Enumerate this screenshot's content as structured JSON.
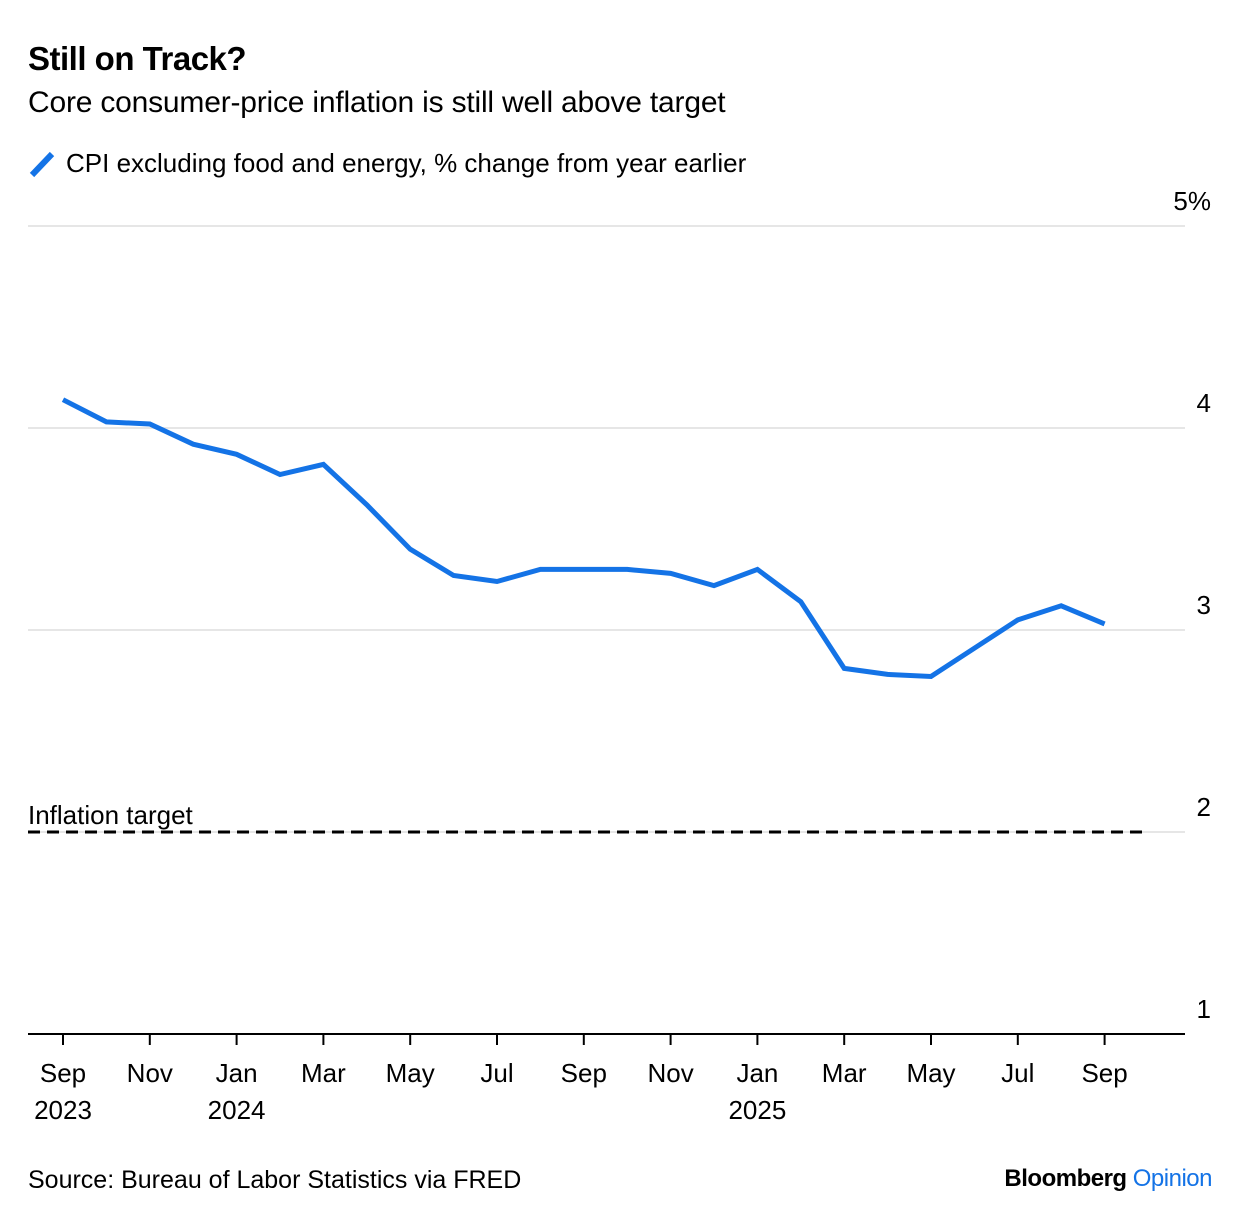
{
  "header": {
    "title": "Still on Track?",
    "subtitle": "Core consumer-price inflation is still well above target"
  },
  "legend": {
    "label": "CPI excluding food and energy, % change from year earlier",
    "icon": "line-swatch-icon"
  },
  "footer": {
    "source": "Source: Bureau of Labor Statistics via FRED",
    "brand_primary": "Bloomberg",
    "brand_secondary": "Opinion"
  },
  "colors": {
    "series": "#1473E6",
    "brand_opinion": "#1473E6",
    "gridline": "#E6E6E6",
    "axis": "#000000",
    "target_line": "#000000"
  },
  "chart_data": {
    "type": "line",
    "title": "Still on Track?",
    "subtitle": "Core consumer-price inflation is still well above target",
    "xlabel": "",
    "ylabel": "",
    "ylim": [
      1,
      5
    ],
    "yticks": [
      {
        "value": 5,
        "label": "5%"
      },
      {
        "value": 4,
        "label": "4"
      },
      {
        "value": 3,
        "label": "3"
      },
      {
        "value": 2,
        "label": "2"
      },
      {
        "value": 1,
        "label": "1"
      }
    ],
    "grid": true,
    "legend_position": "top-left",
    "x": [
      "2023-09",
      "2023-10",
      "2023-11",
      "2023-12",
      "2024-01",
      "2024-02",
      "2024-03",
      "2024-04",
      "2024-05",
      "2024-06",
      "2024-07",
      "2024-08",
      "2024-09",
      "2024-10",
      "2024-11",
      "2024-12",
      "2025-01",
      "2025-02",
      "2025-03",
      "2025-04",
      "2025-05",
      "2025-06",
      "2025-07",
      "2025-08",
      "2025-09"
    ],
    "xticks": [
      {
        "month_index": 0,
        "label": "Sep",
        "year": "2023"
      },
      {
        "month_index": 2,
        "label": "Nov",
        "year": ""
      },
      {
        "month_index": 4,
        "label": "Jan",
        "year": "2024"
      },
      {
        "month_index": 6,
        "label": "Mar",
        "year": ""
      },
      {
        "month_index": 8,
        "label": "May",
        "year": ""
      },
      {
        "month_index": 10,
        "label": "Jul",
        "year": ""
      },
      {
        "month_index": 12,
        "label": "Sep",
        "year": ""
      },
      {
        "month_index": 14,
        "label": "Nov",
        "year": ""
      },
      {
        "month_index": 16,
        "label": "Jan",
        "year": "2025"
      },
      {
        "month_index": 18,
        "label": "Mar",
        "year": ""
      },
      {
        "month_index": 20,
        "label": "May",
        "year": ""
      },
      {
        "month_index": 22,
        "label": "Jul",
        "year": ""
      },
      {
        "month_index": 24,
        "label": "Sep",
        "year": ""
      }
    ],
    "series": [
      {
        "name": "CPI excluding food and energy, % change from year earlier",
        "values": [
          4.14,
          4.03,
          4.02,
          3.92,
          3.87,
          3.77,
          3.82,
          3.62,
          3.4,
          3.27,
          3.24,
          3.3,
          3.3,
          3.3,
          3.28,
          3.22,
          3.3,
          3.14,
          2.81,
          2.78,
          2.77,
          2.91,
          3.05,
          3.12,
          3.03
        ]
      }
    ],
    "reference_line": {
      "value": 2,
      "label": "Inflation target",
      "style": "dashed"
    }
  }
}
